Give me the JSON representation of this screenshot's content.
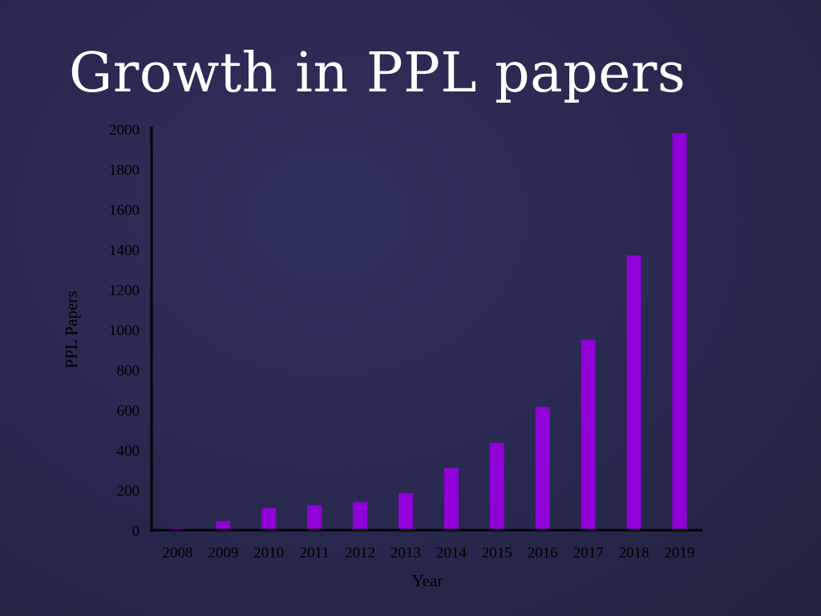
{
  "slide": {
    "title": "Growth in PPL papers"
  },
  "colors": {
    "bar": "#9000d8",
    "axis": "#000000",
    "text": "#000000",
    "title": "#ffffff"
  },
  "chart_data": {
    "type": "bar",
    "title": "",
    "xlabel": "Year",
    "ylabel": "PPL Papers",
    "categories": [
      "2008",
      "2009",
      "2010",
      "2011",
      "2012",
      "2013",
      "2014",
      "2015",
      "2016",
      "2017",
      "2018",
      "2019"
    ],
    "values": [
      10,
      45,
      110,
      125,
      140,
      185,
      310,
      435,
      615,
      950,
      1370,
      1980
    ],
    "ylim": [
      0,
      2000
    ],
    "yticks": [
      0,
      200,
      400,
      600,
      800,
      1000,
      1200,
      1400,
      1600,
      1800,
      2000
    ],
    "grid": false,
    "legend": "none"
  }
}
